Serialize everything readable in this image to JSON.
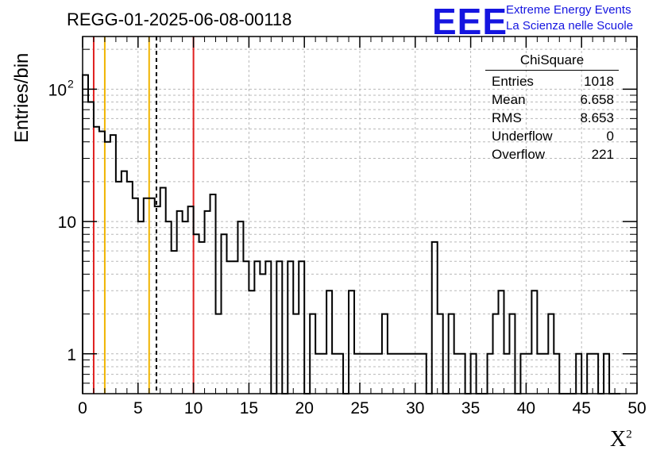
{
  "header": {
    "run_title": "REGG-01-2025-06-08-00118",
    "logo_text": "EEE",
    "logo_line1": "Extreme Energy Events",
    "logo_line2": "La Scienza nelle Scuole",
    "logo_color": "#1515e0"
  },
  "stats_box": {
    "title": "ChiSquare",
    "rows": [
      {
        "label": "Entries",
        "value": "1018"
      },
      {
        "label": "Mean",
        "value": "6.658"
      },
      {
        "label": "RMS",
        "value": "8.653"
      },
      {
        "label": "Underflow",
        "value": "0"
      },
      {
        "label": "Overflow",
        "value": "221"
      }
    ]
  },
  "chart_data": {
    "type": "histogram",
    "title": "REGG-01-2025-06-08-00118",
    "xlabel": "X",
    "xlabel_superscript": "2",
    "ylabel": "Entries/bin",
    "xlim": [
      0,
      50
    ],
    "ylim": [
      0.5,
      250
    ],
    "y_scale": "log",
    "grid": true,
    "bin_width": 0.5,
    "x_ticks": [
      0,
      5,
      10,
      15,
      20,
      25,
      30,
      35,
      40,
      45,
      50
    ],
    "y_ticks": [
      {
        "value": 1,
        "label": "1"
      },
      {
        "value": 10,
        "label": "10"
      },
      {
        "value": 100,
        "label": "10",
        "exponent": "2"
      }
    ],
    "bin_edges_start": 0,
    "counts": [
      128,
      80,
      52,
      48,
      40,
      45,
      20,
      24,
      20,
      15,
      10,
      15,
      15,
      13,
      18,
      10,
      6,
      12,
      10,
      13,
      8,
      7,
      12,
      16,
      2,
      8,
      5,
      5,
      10,
      5,
      3,
      5,
      4,
      5,
      0,
      5,
      0,
      5,
      2,
      5,
      0,
      2,
      1,
      1,
      3,
      1,
      1,
      0,
      3,
      1,
      1,
      1,
      1,
      1,
      2,
      1,
      1,
      1,
      1,
      1,
      1,
      1,
      0,
      7,
      2,
      0,
      2,
      1,
      1,
      0,
      1,
      0,
      0,
      1,
      2,
      3,
      1,
      2,
      0,
      1,
      1,
      3,
      1,
      1,
      2,
      1,
      0,
      0,
      0,
      1,
      0,
      1,
      1,
      0,
      1,
      0,
      0
    ],
    "vertical_lines": [
      {
        "x": 1,
        "color": "#e01f1f",
        "style": "solid"
      },
      {
        "x": 2,
        "color": "#f0b400",
        "style": "solid"
      },
      {
        "x": 6,
        "color": "#f0b400",
        "style": "solid"
      },
      {
        "x": 6.658,
        "color": "#000000",
        "style": "dashed"
      },
      {
        "x": 10,
        "color": "#e01f1f",
        "style": "solid"
      }
    ]
  }
}
